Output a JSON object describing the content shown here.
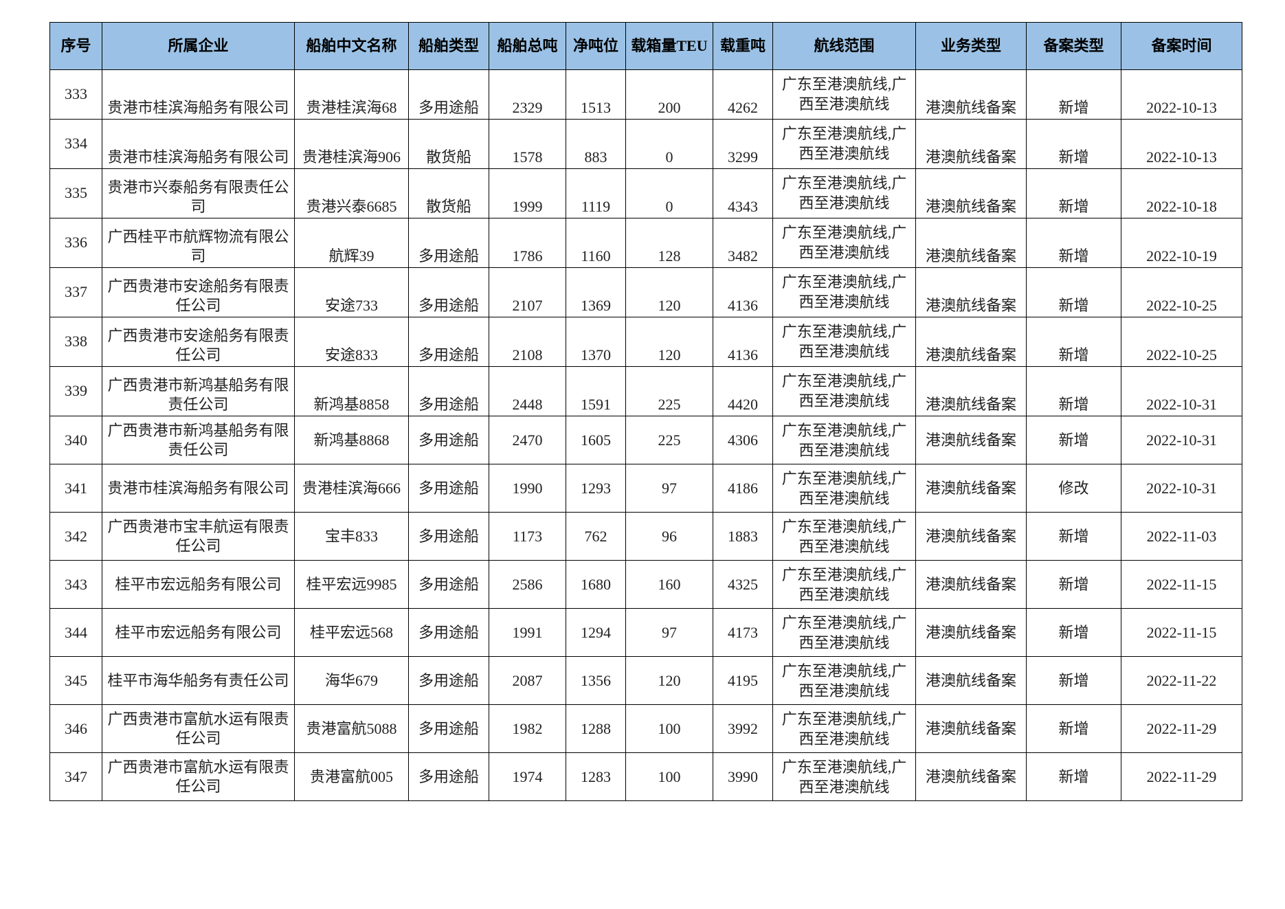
{
  "table": {
    "header": [
      "序号",
      "所属企业",
      "船舶中文名称",
      "船舶类型",
      "船舶总吨",
      "净吨位",
      "载箱量TEU",
      "载重吨",
      "航线范围",
      "业务类型",
      "备案类型",
      "备案时间"
    ],
    "rows": [
      [
        "333",
        "贵港市桂滨海船务有限公司",
        "贵港桂滨海68",
        "多用途船",
        "2329",
        "1513",
        "200",
        "4262",
        "广东至港澳航线,广西至港澳航线",
        "港澳航线备案",
        "新增",
        "2022-10-13"
      ],
      [
        "334",
        "贵港市桂滨海船务有限公司",
        "贵港桂滨海906",
        "散货船",
        "1578",
        "883",
        "0",
        "3299",
        "广东至港澳航线,广西至港澳航线",
        "港澳航线备案",
        "新增",
        "2022-10-13"
      ],
      [
        "335",
        "贵港市兴泰船务有限责任公司",
        "贵港兴泰6685",
        "散货船",
        "1999",
        "1119",
        "0",
        "4343",
        "广东至港澳航线,广西至港澳航线",
        "港澳航线备案",
        "新增",
        "2022-10-18"
      ],
      [
        "336",
        "广西桂平市航辉物流有限公司",
        "航辉39",
        "多用途船",
        "1786",
        "1160",
        "128",
        "3482",
        "广东至港澳航线,广西至港澳航线",
        "港澳航线备案",
        "新增",
        "2022-10-19"
      ],
      [
        "337",
        "广西贵港市安途船务有限责任公司",
        "安途733",
        "多用途船",
        "2107",
        "1369",
        "120",
        "4136",
        "广东至港澳航线,广西至港澳航线",
        "港澳航线备案",
        "新增",
        "2022-10-25"
      ],
      [
        "338",
        "广西贵港市安途船务有限责任公司",
        "安途833",
        "多用途船",
        "2108",
        "1370",
        "120",
        "4136",
        "广东至港澳航线,广西至港澳航线",
        "港澳航线备案",
        "新增",
        "2022-10-25"
      ],
      [
        "339",
        "广西贵港市新鸿基船务有限责任公司",
        "新鸿基8858",
        "多用途船",
        "2448",
        "1591",
        "225",
        "4420",
        "广东至港澳航线,广西至港澳航线",
        "港澳航线备案",
        "新增",
        "2022-10-31"
      ],
      [
        "340",
        "广西贵港市新鸿基船务有限责任公司",
        "新鸿基8868",
        "多用途船",
        "2470",
        "1605",
        "225",
        "4306",
        "广东至港澳航线,广西至港澳航线",
        "港澳航线备案",
        "新增",
        "2022-10-31"
      ],
      [
        "341",
        "贵港市桂滨海船务有限公司",
        "贵港桂滨海666",
        "多用途船",
        "1990",
        "1293",
        "97",
        "4186",
        "广东至港澳航线,广西至港澳航线",
        "港澳航线备案",
        "修改",
        "2022-10-31"
      ],
      [
        "342",
        "广西贵港市宝丰航运有限责任公司",
        "宝丰833",
        "多用途船",
        "1173",
        "762",
        "96",
        "1883",
        "广东至港澳航线,广西至港澳航线",
        "港澳航线备案",
        "新增",
        "2022-11-03"
      ],
      [
        "343",
        "桂平市宏远船务有限公司",
        "桂平宏远9985",
        "多用途船",
        "2586",
        "1680",
        "160",
        "4325",
        "广东至港澳航线,广西至港澳航线",
        "港澳航线备案",
        "新增",
        "2022-11-15"
      ],
      [
        "344",
        "桂平市宏远船务有限公司",
        "桂平宏远568",
        "多用途船",
        "1991",
        "1294",
        "97",
        "4173",
        "广东至港澳航线,广西至港澳航线",
        "港澳航线备案",
        "新增",
        "2022-11-15"
      ],
      [
        "345",
        "桂平市海华船务有责任公司",
        "海华679",
        "多用途船",
        "2087",
        "1356",
        "120",
        "4195",
        "广东至港澳航线,广西至港澳航线",
        "港澳航线备案",
        "新增",
        "2022-11-22"
      ],
      [
        "346",
        "广西贵港市富航水运有限责任公司",
        "贵港富航5088",
        "多用途船",
        "1982",
        "1288",
        "100",
        "3992",
        "广东至港澳航线,广西至港澳航线",
        "港澳航线备案",
        "新增",
        "2022-11-29"
      ],
      [
        "347",
        "广西贵港市富航水运有限责任公司",
        "贵港富航005",
        "多用途船",
        "1974",
        "1283",
        "100",
        "3990",
        "广东至港澳航线,广西至港澳航线",
        "港澳航线备案",
        "新增",
        "2022-11-29"
      ]
    ]
  }
}
